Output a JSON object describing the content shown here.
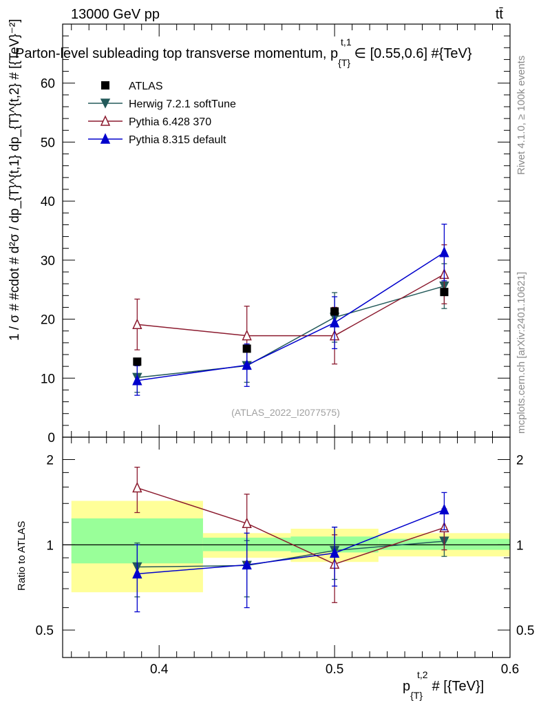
{
  "header": {
    "energy_label": "13000 GeV pp",
    "process_label": "tt̄",
    "title": "Parton-level subleading top transverse momentum, p",
    "title_sub": "{T}",
    "title_sup": "t,1",
    "title_tail": "∈ [0.55,0.6] #{TeV}",
    "side_rivet": "Rivet 4.1.0, ≥ 100k events",
    "side_mcplots": "mcplots.cern.ch [arXiv:2401.10621]",
    "watermark": "(ATLAS_2022_I2077575)"
  },
  "axes": {
    "ylabel_main": "1 / σ # #cdot # d²σ / dp_{T}^{t,1} dp_{T}^{t,2} # [{TeV}⁻²]",
    "ylabel_ratio": "Ratio to ATLAS",
    "xlabel_main": "p",
    "xlabel_sub": "{T}",
    "xlabel_sup": "t,2",
    "xlabel_tail": "# [{TeV}]"
  },
  "chart_data": {
    "type": "scatter",
    "xlim": [
      0.345,
      0.6
    ],
    "x_ticks": [
      0.4,
      0.5,
      0.6
    ],
    "x_tick_labels": [
      "0.4",
      "0.5",
      "0.6"
    ],
    "main": {
      "ylim": [
        0,
        70
      ],
      "y_ticks": [
        0,
        10,
        20,
        30,
        40,
        50,
        60
      ],
      "y_tick_labels": [
        "0",
        "10",
        "20",
        "30",
        "40",
        "50",
        "60"
      ]
    },
    "ratio": {
      "ylim": [
        0.4,
        2.4
      ],
      "y_ticks": [
        0.5,
        1,
        2
      ],
      "y_tick_labels": [
        "0.5",
        "1",
        "2"
      ],
      "bins": [
        {
          "x0": 0.35,
          "x1": 0.425,
          "yellow": [
            0.68,
            1.43
          ],
          "green": [
            0.86,
            1.24
          ]
        },
        {
          "x0": 0.425,
          "x1": 0.475,
          "yellow": [
            0.9,
            1.1
          ],
          "green": [
            0.95,
            1.06
          ]
        },
        {
          "x0": 0.475,
          "x1": 0.525,
          "yellow": [
            0.87,
            1.14
          ],
          "green": [
            0.94,
            1.07
          ]
        },
        {
          "x0": 0.525,
          "x1": 0.6,
          "yellow": [
            0.91,
            1.1
          ],
          "green": [
            0.96,
            1.05
          ]
        }
      ]
    },
    "x": [
      0.3875,
      0.45,
      0.5,
      0.5625
    ],
    "series": [
      {
        "name": "ATLAS",
        "color": "#000000",
        "marker": "square",
        "values": [
          12.8,
          15.0,
          21.3,
          24.6
        ],
        "ratio": [
          1,
          1,
          1,
          1
        ]
      },
      {
        "name": "Herwig 7.2.1 softTune",
        "color": "#235a5a",
        "marker": "triangle-down",
        "values": [
          10.1,
          12.1,
          20.3,
          25.6
        ],
        "err": [
          2.5,
          2.8,
          4.2,
          3.8
        ],
        "ratio": [
          0.835,
          0.845,
          0.955,
          1.03
        ],
        "ratio_err": [
          0.18,
          0.19,
          0.2,
          0.12
        ]
      },
      {
        "name": "Pythia 6.428 370",
        "color": "#8b1a2e",
        "marker": "triangle-up-open",
        "values": [
          19.1,
          17.2,
          17.2,
          27.6
        ],
        "err": [
          4.3,
          5.0,
          4.8,
          5.0
        ],
        "ratio": [
          1.59,
          1.19,
          0.855,
          1.15
        ],
        "ratio_err": [
          0.29,
          0.32,
          0.23,
          0.19
        ]
      },
      {
        "name": "Pythia 8.315 default",
        "color": "#0000cc",
        "marker": "triangle-up",
        "values": [
          9.6,
          12.2,
          19.4,
          31.3
        ],
        "err": [
          2.5,
          3.6,
          4.4,
          4.8
        ],
        "ratio": [
          0.79,
          0.85,
          0.935,
          1.33
        ],
        "ratio_err": [
          0.21,
          0.25,
          0.22,
          0.2
        ]
      }
    ]
  }
}
